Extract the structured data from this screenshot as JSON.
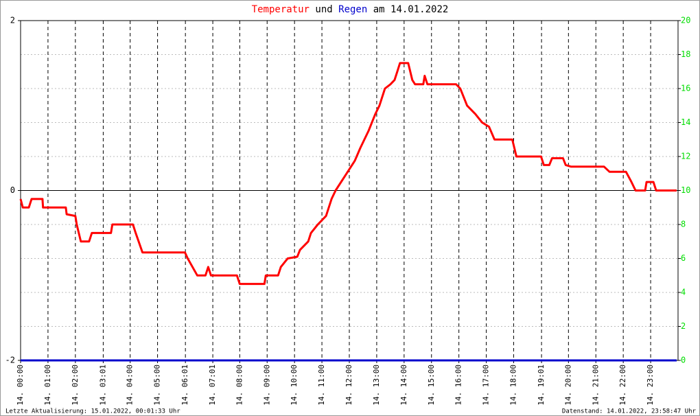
{
  "chart_data": {
    "type": "line",
    "title_connector": "und",
    "title_suffix": "am 14.01.2022",
    "footer_left": "Letzte Aktualisierung: 15.01.2022, 00:01:33 Uhr",
    "footer_right": "Datenstand: 14.01.2022, 23:58:47 Uhr",
    "xlim": [
      0,
      24
    ],
    "xticks": [
      {
        "value": 0,
        "label": "14. 00:00"
      },
      {
        "value": 1,
        "label": "14. 01:00"
      },
      {
        "value": 2,
        "label": "14. 02:00"
      },
      {
        "value": 3.0167,
        "label": "14. 03:01"
      },
      {
        "value": 4,
        "label": "14. 04:00"
      },
      {
        "value": 5,
        "label": "14. 05:00"
      },
      {
        "value": 6.0167,
        "label": "14. 06:01"
      },
      {
        "value": 7.0167,
        "label": "14. 07:01"
      },
      {
        "value": 8,
        "label": "14. 08:00"
      },
      {
        "value": 9,
        "label": "14. 09:00"
      },
      {
        "value": 10,
        "label": "14. 10:00"
      },
      {
        "value": 11,
        "label": "14. 11:00"
      },
      {
        "value": 12,
        "label": "14. 12:00"
      },
      {
        "value": 13,
        "label": "14. 13:00"
      },
      {
        "value": 14,
        "label": "14. 14:00"
      },
      {
        "value": 15,
        "label": "14. 15:00"
      },
      {
        "value": 16,
        "label": "14. 16:00"
      },
      {
        "value": 17,
        "label": "14. 17:00"
      },
      {
        "value": 18,
        "label": "14. 18:00"
      },
      {
        "value": 19.0167,
        "label": "14. 19:01"
      },
      {
        "value": 20,
        "label": "14. 20:00"
      },
      {
        "value": 21,
        "label": "14. 21:00"
      },
      {
        "value": 22,
        "label": "14. 22:00"
      },
      {
        "value": 23,
        "label": "14. 23:00"
      }
    ],
    "ylim": [
      -2,
      2
    ],
    "yticks": [
      -2,
      0,
      2
    ],
    "y2lim": [
      0,
      20
    ],
    "y2ticks": [
      0,
      2,
      4,
      6,
      8,
      10,
      12,
      14,
      16,
      18,
      20
    ],
    "y2_color": "#00dd00",
    "grid": true,
    "series": [
      {
        "name": "Temperatur",
        "color": "#ff0000",
        "x": [
          0,
          0.08,
          0.3,
          0.4,
          0.8,
          0.82,
          1.65,
          1.68,
          2.0,
          2.05,
          2.2,
          2.5,
          2.6,
          3.3,
          3.35,
          4.1,
          4.2,
          4.45,
          6.0,
          6.1,
          6.45,
          6.75,
          6.85,
          6.95,
          7.9,
          8.0,
          8.9,
          8.95,
          9.4,
          9.5,
          9.75,
          10.1,
          10.2,
          10.5,
          10.6,
          10.85,
          11.15,
          11.35,
          11.5,
          11.9,
          12.2,
          12.4,
          12.7,
          12.95,
          13.1,
          13.3,
          13.5,
          13.65,
          13.75,
          13.85,
          14.15,
          14.3,
          14.4,
          14.7,
          14.75,
          14.85,
          15.9,
          16.05,
          16.3,
          16.6,
          16.85,
          17.1,
          17.3,
          17.95,
          18.1,
          19.0,
          19.1,
          19.3,
          19.4,
          19.8,
          19.9,
          20.1,
          21.3,
          21.5,
          22.1,
          22.3,
          22.45,
          22.8,
          22.85,
          23.1,
          23.2,
          23.95
        ],
        "values": [
          -0.1,
          -0.2,
          -0.2,
          -0.1,
          -0.1,
          -0.2,
          -0.2,
          -0.28,
          -0.3,
          -0.4,
          -0.6,
          -0.6,
          -0.5,
          -0.5,
          -0.4,
          -0.4,
          -0.5,
          -0.73,
          -0.73,
          -0.8,
          -1.0,
          -1.0,
          -0.9,
          -1.0,
          -1.0,
          -1.1,
          -1.1,
          -1.0,
          -1.0,
          -0.9,
          -0.8,
          -0.78,
          -0.7,
          -0.6,
          -0.5,
          -0.4,
          -0.3,
          -0.1,
          0.0,
          0.2,
          0.35,
          0.5,
          0.7,
          0.9,
          1.0,
          1.2,
          1.25,
          1.3,
          1.4,
          1.5,
          1.5,
          1.3,
          1.25,
          1.25,
          1.35,
          1.25,
          1.25,
          1.2,
          1.0,
          0.9,
          0.8,
          0.75,
          0.6,
          0.6,
          0.4,
          0.4,
          0.3,
          0.3,
          0.38,
          0.38,
          0.3,
          0.28,
          0.28,
          0.22,
          0.22,
          0.1,
          0.0,
          0.0,
          0.1,
          0.1,
          0.0,
          0.0
        ]
      },
      {
        "name": "Regen",
        "color": "#0000cc",
        "axis": "y2",
        "x": [
          0,
          23.95
        ],
        "values": [
          0,
          0
        ]
      }
    ]
  }
}
